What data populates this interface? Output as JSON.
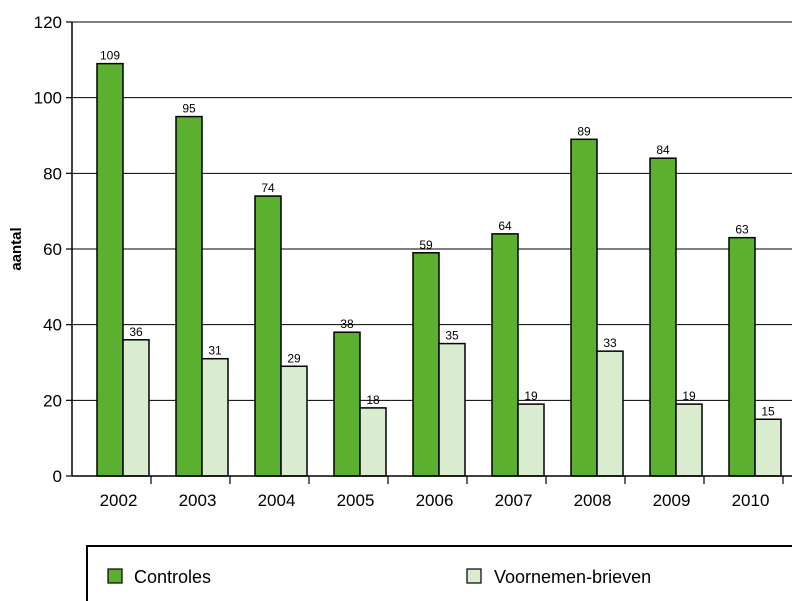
{
  "chart_data": {
    "type": "bar",
    "categories": [
      "2002",
      "2003",
      "2004",
      "2005",
      "2006",
      "2007",
      "2008",
      "2009",
      "2010"
    ],
    "series": [
      {
        "name": "Controles",
        "values": [
          109,
          95,
          74,
          38,
          59,
          64,
          89,
          84,
          63
        ],
        "color": "#5cb030"
      },
      {
        "name": "Voornemen-brieven",
        "values": [
          36,
          31,
          29,
          18,
          35,
          19,
          33,
          19,
          15
        ],
        "color": "#d9ecd0"
      }
    ],
    "ylabel": "aantal",
    "ylim": [
      0,
      120
    ],
    "yticks": [
      0,
      20,
      40,
      60,
      80,
      100,
      120
    ],
    "grid": true,
    "legend_position": "bottom"
  }
}
